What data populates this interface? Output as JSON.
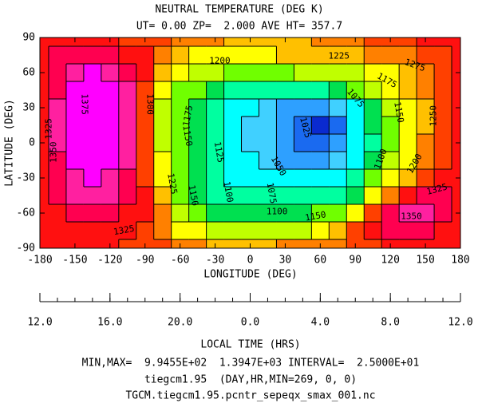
{
  "chart_data": {
    "type": "contour",
    "title": "NEUTRAL TEMPERATURE (DEG K)",
    "subtitle": "UT= 0.00 ZP=  2.000 AVE HT= 357.7",
    "xlabel": "LONGITUDE (DEG)",
    "ylabel": "LATITUDE (DEG)",
    "xlim": [
      -180,
      180
    ],
    "xticks": [
      -180,
      -150,
      -120,
      -90,
      -60,
      -30,
      0,
      30,
      60,
      90,
      120,
      150,
      180
    ],
    "ylim": [
      -90,
      90
    ],
    "yticks": [
      -90,
      -60,
      -30,
      0,
      30,
      60,
      90
    ],
    "x2label": "LOCAL TIME (HRS)",
    "x2lim": [
      12,
      36
    ],
    "x2minor_step": 1,
    "x2ticks": [
      {
        "value": 12,
        "label": "12.0"
      },
      {
        "value": 16,
        "label": "16.0"
      },
      {
        "value": 20,
        "label": "20.0"
      },
      {
        "value": 24,
        "label": "0.0"
      },
      {
        "value": 28,
        "label": "4.0"
      },
      {
        "value": 32,
        "label": "8.0"
      },
      {
        "value": 36,
        "label": "12.0"
      }
    ],
    "levels": [
      1000,
      1025,
      1050,
      1075,
      1100,
      1125,
      1150,
      1175,
      1200,
      1225,
      1250,
      1275,
      1300,
      1325,
      1350,
      1375
    ],
    "colors": [
      "#0a2ad0",
      "#1a6af0",
      "#2ea0ff",
      "#40d0ff",
      "#00ffff",
      "#00ffa0",
      "#00e050",
      "#70ff00",
      "#c0ff00",
      "#ffff00",
      "#ffc000",
      "#ff8000",
      "#ff4000",
      "#ff1010",
      "#ff0050",
      "#ff20a0",
      "#ff00ff"
    ],
    "x": [
      -180,
      -165,
      -150,
      -135,
      -120,
      -105,
      -90,
      -75,
      -60,
      -45,
      -30,
      -15,
      0,
      15,
      30,
      45,
      60,
      75,
      90,
      105,
      120,
      135,
      150,
      165,
      180
    ],
    "y": [
      90,
      75,
      60,
      45,
      30,
      15,
      0,
      -15,
      -30,
      -45,
      -60,
      -75,
      -90
    ],
    "z": [
      [
        1310,
        1310,
        1310,
        1305,
        1300,
        1295,
        1290,
        1280,
        1270,
        1260,
        1250,
        1245,
        1240,
        1240,
        1240,
        1245,
        1250,
        1255,
        1265,
        1275,
        1285,
        1295,
        1300,
        1305,
        1310
      ],
      [
        1310,
        1330,
        1340,
        1345,
        1340,
        1320,
        1300,
        1260,
        1230,
        1220,
        1215,
        1215,
        1215,
        1220,
        1225,
        1230,
        1230,
        1235,
        1240,
        1250,
        1260,
        1270,
        1280,
        1290,
        1310
      ],
      [
        1310,
        1340,
        1370,
        1380,
        1370,
        1345,
        1300,
        1230,
        1200,
        1185,
        1175,
        1170,
        1165,
        1165,
        1170,
        1175,
        1180,
        1180,
        1190,
        1200,
        1220,
        1240,
        1260,
        1280,
        1310
      ],
      [
        1315,
        1345,
        1380,
        1390,
        1380,
        1350,
        1295,
        1210,
        1170,
        1150,
        1135,
        1120,
        1110,
        1105,
        1105,
        1110,
        1120,
        1135,
        1150,
        1175,
        1200,
        1225,
        1250,
        1280,
        1315
      ],
      [
        1320,
        1350,
        1385,
        1393,
        1385,
        1355,
        1290,
        1195,
        1160,
        1140,
        1120,
        1095,
        1080,
        1060,
        1040,
        1030,
        1030,
        1050,
        1090,
        1140,
        1180,
        1215,
        1245,
        1280,
        1320
      ],
      [
        1320,
        1350,
        1385,
        1393,
        1385,
        1355,
        1285,
        1190,
        1155,
        1135,
        1115,
        1085,
        1070,
        1050,
        1030,
        1010,
        997,
        1020,
        1080,
        1125,
        1170,
        1210,
        1245,
        1280,
        1320
      ],
      [
        1320,
        1350,
        1385,
        1392,
        1385,
        1355,
        1280,
        1190,
        1150,
        1130,
        1110,
        1080,
        1065,
        1050,
        1030,
        1012,
        1000,
        1025,
        1080,
        1120,
        1170,
        1210,
        1250,
        1285,
        1320
      ],
      [
        1320,
        1345,
        1380,
        1390,
        1380,
        1350,
        1280,
        1200,
        1155,
        1130,
        1105,
        1085,
        1075,
        1060,
        1045,
        1035,
        1040,
        1060,
        1090,
        1125,
        1175,
        1215,
        1255,
        1290,
        1320
      ],
      [
        1320,
        1340,
        1370,
        1380,
        1370,
        1345,
        1290,
        1220,
        1160,
        1125,
        1105,
        1095,
        1085,
        1080,
        1075,
        1075,
        1080,
        1090,
        1110,
        1150,
        1200,
        1240,
        1280,
        1310,
        1320
      ],
      [
        1315,
        1335,
        1350,
        1355,
        1350,
        1335,
        1300,
        1240,
        1170,
        1140,
        1115,
        1105,
        1100,
        1100,
        1100,
        1105,
        1110,
        1120,
        1140,
        1200,
        1270,
        1320,
        1335,
        1330,
        1315
      ],
      [
        1310,
        1320,
        1330,
        1330,
        1325,
        1315,
        1300,
        1250,
        1190,
        1160,
        1145,
        1135,
        1130,
        1130,
        1135,
        1140,
        1150,
        1165,
        1200,
        1290,
        1345,
        1360,
        1355,
        1340,
        1310
      ],
      [
        1305,
        1310,
        1315,
        1315,
        1310,
        1305,
        1290,
        1260,
        1220,
        1200,
        1190,
        1185,
        1185,
        1185,
        1190,
        1195,
        1210,
        1240,
        1280,
        1310,
        1330,
        1340,
        1335,
        1320,
        1305
      ],
      [
        1300,
        1300,
        1300,
        1300,
        1300,
        1295,
        1290,
        1275,
        1260,
        1250,
        1245,
        1245,
        1245,
        1245,
        1250,
        1255,
        1260,
        1270,
        1285,
        1295,
        1300,
        1305,
        1305,
        1300,
        1300
      ]
    ],
    "contour_labels": [
      {
        "value": 1325,
        "x": -172,
        "y": 12,
        "rotate": -90
      },
      {
        "value": 1375,
        "x": -142,
        "y": 33,
        "rotate": 90
      },
      {
        "value": 1350,
        "x": -168,
        "y": -8,
        "rotate": -90
      },
      {
        "value": 1300,
        "x": -86,
        "y": 33,
        "rotate": 90
      },
      {
        "value": 1200,
        "x": -26,
        "y": 70,
        "rotate": 0
      },
      {
        "value": 1225,
        "x": 76,
        "y": 74,
        "rotate": 0
      },
      {
        "value": 1275,
        "x": 141,
        "y": 66,
        "rotate": 20
      },
      {
        "value": 1175,
        "x": -53,
        "y": 23,
        "rotate": -80
      },
      {
        "value": 1175,
        "x": 117,
        "y": 53,
        "rotate": 30
      },
      {
        "value": 1150,
        "x": -54,
        "y": 6,
        "rotate": 80
      },
      {
        "value": 1150,
        "x": 127,
        "y": 26,
        "rotate": 80
      },
      {
        "value": 1125,
        "x": -27,
        "y": -8,
        "rotate": 80
      },
      {
        "value": 1025,
        "x": 47,
        "y": 13,
        "rotate": 75
      },
      {
        "value": 1075,
        "x": 90,
        "y": 38,
        "rotate": 50
      },
      {
        "value": 1075,
        "x": 18,
        "y": -43,
        "rotate": 80
      },
      {
        "value": 1050,
        "x": 24,
        "y": -20,
        "rotate": 60
      },
      {
        "value": 1100,
        "x": -19,
        "y": -42,
        "rotate": 80
      },
      {
        "value": 1100,
        "x": 112,
        "y": -14,
        "rotate": -70
      },
      {
        "value": 1250,
        "x": 157,
        "y": 23,
        "rotate": -90
      },
      {
        "value": 1200,
        "x": 141,
        "y": -18,
        "rotate": -60
      },
      {
        "value": 1225,
        "x": -67,
        "y": -35,
        "rotate": 80
      },
      {
        "value": 1150,
        "x": -49,
        "y": -45,
        "rotate": 80
      },
      {
        "value": 1100,
        "x": 23,
        "y": -59,
        "rotate": 0
      },
      {
        "value": 1150,
        "x": 56,
        "y": -63,
        "rotate": -10
      },
      {
        "value": 1325,
        "x": 160,
        "y": -40,
        "rotate": -15
      },
      {
        "value": 1350,
        "x": 138,
        "y": -63,
        "rotate": 0
      },
      {
        "value": 1325,
        "x": -108,
        "y": -75,
        "rotate": -10
      }
    ],
    "notes": [
      "MIN,MAX=  9.9455E+02  1.3947E+03 INTERVAL=  2.5000E+01",
      "tiegcm1.95  (DAY,HR,MIN=269, 0, 0)",
      "TGCM.tiegcm1.95.pcntr_sepeqx_smax_001.nc"
    ]
  }
}
